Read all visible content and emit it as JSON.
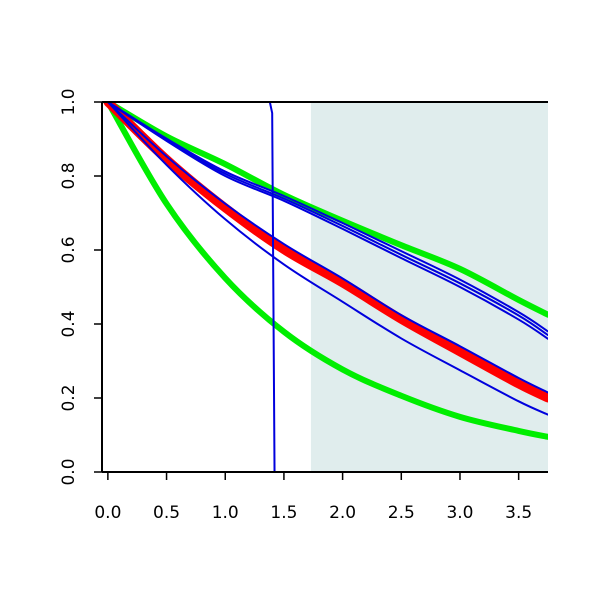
{
  "chart_data": {
    "type": "line",
    "title": "",
    "xlabel": "",
    "ylabel": "",
    "xlim": [
      -0.05,
      3.75
    ],
    "ylim": [
      0.0,
      1.0
    ],
    "x_ticks": [
      0.0,
      0.5,
      1.0,
      1.5,
      2.0,
      2.5,
      3.0,
      3.5
    ],
    "x_tick_labels": [
      "0.0",
      "0.5",
      "1.0",
      "1.5",
      "2.0",
      "2.5",
      "3.0",
      "3.5"
    ],
    "y_ticks": [
      0.0,
      0.2,
      0.4,
      0.6,
      0.8,
      1.0
    ],
    "y_tick_labels": [
      "0.0",
      "0.2",
      "0.4",
      "0.6",
      "0.8",
      "1.0"
    ],
    "grid": false,
    "shaded_region": {
      "x_from": 1.73,
      "x_to": 3.75,
      "color": "#e0eded"
    },
    "series": [
      {
        "color": "#00ee00",
        "weight": "thick",
        "x": [
          0,
          0.5,
          1.0,
          1.5,
          2.0,
          2.5,
          3.0,
          3.5,
          3.75
        ],
        "y": [
          1.0,
          0.725,
          0.524,
          0.379,
          0.277,
          0.206,
          0.149,
          0.111,
          0.095
        ]
      },
      {
        "color": "#00ee00",
        "weight": "thick",
        "x": [
          0,
          0.5,
          1.0,
          1.5,
          2.0,
          2.5,
          3.0,
          3.5,
          3.75
        ],
        "y": [
          1.0,
          0.907,
          0.832,
          0.749,
          0.679,
          0.613,
          0.549,
          0.465,
          0.425
        ]
      },
      {
        "color": "#ff0000",
        "weight": "extra-thick",
        "x": [
          0,
          0.5,
          1.0,
          1.5,
          2.0,
          2.5,
          3.0,
          3.5,
          3.75
        ],
        "y": [
          1.0,
          0.845,
          0.714,
          0.601,
          0.511,
          0.413,
          0.325,
          0.238,
          0.2
        ]
      },
      {
        "color": "#0000dd",
        "weight": "thin",
        "x": [
          0,
          0.5,
          1.0,
          1.5,
          2.0,
          2.5,
          3.0,
          3.5,
          3.75
        ],
        "y": [
          1.0,
          0.83,
          0.683,
          0.561,
          0.46,
          0.361,
          0.275,
          0.191,
          0.155
        ]
      },
      {
        "color": "#0000dd",
        "weight": "thin",
        "x": [
          0,
          0.5,
          1.0,
          1.5,
          2.0,
          2.5,
          3.0,
          3.5,
          3.75
        ],
        "y": [
          1.0,
          0.853,
          0.725,
          0.616,
          0.523,
          0.424,
          0.34,
          0.254,
          0.215
        ]
      },
      {
        "color": "#0000dd",
        "weight": "thin",
        "x": [
          0,
          0.5,
          1.0,
          1.5,
          2.0,
          2.5,
          3.0,
          3.5,
          3.75
        ],
        "y": [
          1.0,
          0.895,
          0.8,
          0.733,
          0.657,
          0.578,
          0.5,
          0.412,
          0.36
        ]
      },
      {
        "color": "#0000dd",
        "weight": "thin",
        "x": [
          0,
          0.5,
          1.0,
          1.5,
          2.0,
          2.5,
          3.0,
          3.5,
          3.75
        ],
        "y": [
          1.0,
          0.898,
          0.806,
          0.739,
          0.665,
          0.587,
          0.51,
          0.423,
          0.37
        ]
      },
      {
        "color": "#0000dd",
        "weight": "thin",
        "x": [
          0,
          0.5,
          1.0,
          1.5,
          2.0,
          2.5,
          3.0,
          3.5,
          3.75
        ],
        "y": [
          1.0,
          0.901,
          0.812,
          0.746,
          0.673,
          0.597,
          0.52,
          0.432,
          0.38
        ]
      },
      {
        "color": "#0000dd",
        "weight": "thin",
        "x": [
          -0.02,
          1.38,
          1.4,
          1.42,
          3.75
        ],
        "y": [
          1.0,
          1.0,
          0.97,
          0.0,
          0.0
        ]
      }
    ]
  }
}
